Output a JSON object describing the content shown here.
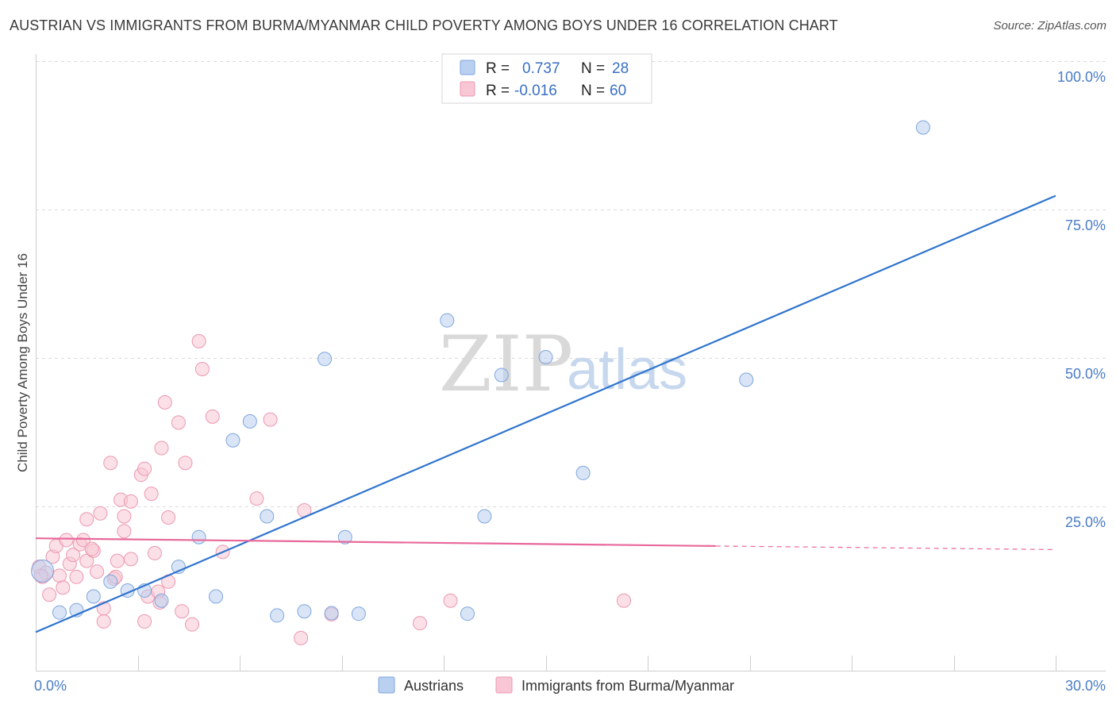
{
  "title": "AUSTRIAN VS IMMIGRANTS FROM BURMA/MYANMAR CHILD POVERTY AMONG BOYS UNDER 16 CORRELATION CHART",
  "source": "Source: ZipAtlas.com",
  "watermark": {
    "zip": "ZIP",
    "atlas": "atlas"
  },
  "colors": {
    "blue_fill": "#b9d0f0",
    "blue_stroke": "#7fa6dc",
    "blue_line": "#2f74cf",
    "pink_fill": "#f8c6d4",
    "pink_stroke": "#ec98b0",
    "pink_line": "#e8689a"
  },
  "legend": {
    "r_label": "R =",
    "n_label": "N =",
    "rows": [
      {
        "series": "Austrians",
        "r": "0.737",
        "n": "28"
      },
      {
        "series": "Immigrants from Burma/Myanmar",
        "r": "-0.016",
        "n": "60"
      }
    ]
  },
  "chart_data": {
    "type": "scatter",
    "title": "AUSTRIAN VS IMMIGRANTS FROM BURMA/MYANMAR CHILD POVERTY AMONG BOYS UNDER 16 CORRELATION CHART",
    "xlabel": "",
    "ylabel": "Child Poverty Among Boys Under 16",
    "xlim": [
      0,
      30
    ],
    "ylim": [
      0,
      100
    ],
    "x_tick_labels": [
      "0.0%",
      "30.0%"
    ],
    "y_tick_values": [
      25,
      50,
      75,
      100
    ],
    "y_tick_labels": [
      "25.0%",
      "50.0%",
      "75.0%",
      "100.0%"
    ],
    "grid": true,
    "legend_position": "top-center",
    "series": [
      {
        "name": "Austrians",
        "color": "#7fa6dc",
        "r": 0.737,
        "n": 28,
        "trend": {
          "x": [
            0,
            30
          ],
          "y": [
            6.5,
            80
          ]
        },
        "points": [
          {
            "x": 0.2,
            "y": 16.8,
            "big": true
          },
          {
            "x": 0.7,
            "y": 9.8
          },
          {
            "x": 1.2,
            "y": 10.2
          },
          {
            "x": 1.7,
            "y": 12.5
          },
          {
            "x": 2.2,
            "y": 15.0
          },
          {
            "x": 2.7,
            "y": 13.5
          },
          {
            "x": 3.2,
            "y": 13.5
          },
          {
            "x": 3.7,
            "y": 11.8
          },
          {
            "x": 4.2,
            "y": 17.5
          },
          {
            "x": 4.8,
            "y": 22.5
          },
          {
            "x": 5.3,
            "y": 12.5
          },
          {
            "x": 5.8,
            "y": 38.8
          },
          {
            "x": 6.3,
            "y": 42.0
          },
          {
            "x": 6.8,
            "y": 26.0
          },
          {
            "x": 7.1,
            "y": 9.3
          },
          {
            "x": 7.9,
            "y": 10.0
          },
          {
            "x": 8.5,
            "y": 52.5
          },
          {
            "x": 8.7,
            "y": 9.7
          },
          {
            "x": 9.1,
            "y": 22.5
          },
          {
            "x": 9.5,
            "y": 9.6
          },
          {
            "x": 12.1,
            "y": 59.0
          },
          {
            "x": 12.7,
            "y": 9.6
          },
          {
            "x": 13.2,
            "y": 26.0
          },
          {
            "x": 13.7,
            "y": 49.8
          },
          {
            "x": 15.0,
            "y": 52.8
          },
          {
            "x": 16.1,
            "y": 33.3
          },
          {
            "x": 20.9,
            "y": 49.0
          },
          {
            "x": 26.1,
            "y": 91.5
          }
        ]
      },
      {
        "name": "Immigrants from Burma/Myanmar",
        "color": "#ec98b0",
        "r": -0.016,
        "n": 60,
        "trend": {
          "x": [
            0,
            20
          ],
          "y": [
            22.3,
            21.0
          ]
        },
        "trend_dashed": {
          "x": [
            20,
            30
          ],
          "y": [
            21.0,
            20.4
          ]
        },
        "points": [
          {
            "x": 0.1,
            "y": 17.5
          },
          {
            "x": 0.2,
            "y": 15.8
          },
          {
            "x": 0.3,
            "y": 16.5
          },
          {
            "x": 0.4,
            "y": 12.8
          },
          {
            "x": 0.5,
            "y": 19.2
          },
          {
            "x": 0.6,
            "y": 21.0
          },
          {
            "x": 0.7,
            "y": 16.0
          },
          {
            "x": 0.8,
            "y": 14.0
          },
          {
            "x": 0.9,
            "y": 22.0
          },
          {
            "x": 1.0,
            "y": 18.0
          },
          {
            "x": 1.1,
            "y": 19.5
          },
          {
            "x": 1.2,
            "y": 15.8
          },
          {
            "x": 1.3,
            "y": 21.3
          },
          {
            "x": 1.4,
            "y": 22.0
          },
          {
            "x": 1.5,
            "y": 18.5
          },
          {
            "x": 1.5,
            "y": 25.5
          },
          {
            "x": 1.7,
            "y": 20.2
          },
          {
            "x": 1.8,
            "y": 16.7
          },
          {
            "x": 1.9,
            "y": 26.5
          },
          {
            "x": 2.0,
            "y": 8.3
          },
          {
            "x": 2.0,
            "y": 10.5
          },
          {
            "x": 2.2,
            "y": 35.0
          },
          {
            "x": 2.3,
            "y": 15.5
          },
          {
            "x": 2.4,
            "y": 18.5
          },
          {
            "x": 2.5,
            "y": 28.8
          },
          {
            "x": 2.6,
            "y": 26.0
          },
          {
            "x": 2.6,
            "y": 23.5
          },
          {
            "x": 2.8,
            "y": 18.8
          },
          {
            "x": 2.8,
            "y": 28.5
          },
          {
            "x": 3.1,
            "y": 33.0
          },
          {
            "x": 3.2,
            "y": 34.0
          },
          {
            "x": 3.2,
            "y": 8.3
          },
          {
            "x": 3.3,
            "y": 12.5
          },
          {
            "x": 3.4,
            "y": 29.8
          },
          {
            "x": 3.5,
            "y": 19.8
          },
          {
            "x": 3.6,
            "y": 13.3
          },
          {
            "x": 3.7,
            "y": 37.5
          },
          {
            "x": 3.8,
            "y": 45.2
          },
          {
            "x": 3.9,
            "y": 25.8
          },
          {
            "x": 3.9,
            "y": 15.0
          },
          {
            "x": 4.2,
            "y": 41.8
          },
          {
            "x": 4.3,
            "y": 10.0
          },
          {
            "x": 4.4,
            "y": 35.0
          },
          {
            "x": 4.6,
            "y": 7.8
          },
          {
            "x": 4.8,
            "y": 55.5
          },
          {
            "x": 4.9,
            "y": 50.8
          },
          {
            "x": 5.2,
            "y": 42.8
          },
          {
            "x": 5.5,
            "y": 20.0
          },
          {
            "x": 6.5,
            "y": 29.0
          },
          {
            "x": 6.9,
            "y": 42.3
          },
          {
            "x": 7.8,
            "y": 5.5
          },
          {
            "x": 7.9,
            "y": 27.0
          },
          {
            "x": 8.7,
            "y": 9.5
          },
          {
            "x": 11.3,
            "y": 8.0
          },
          {
            "x": 12.2,
            "y": 11.8
          },
          {
            "x": 17.3,
            "y": 11.8
          },
          {
            "x": 0.15,
            "y": 16.0
          },
          {
            "x": 1.65,
            "y": 20.5
          },
          {
            "x": 2.35,
            "y": 15.8
          },
          {
            "x": 3.65,
            "y": 11.5
          }
        ]
      }
    ]
  },
  "bottom_legend": [
    "Austrians",
    "Immigrants from Burma/Myanmar"
  ]
}
